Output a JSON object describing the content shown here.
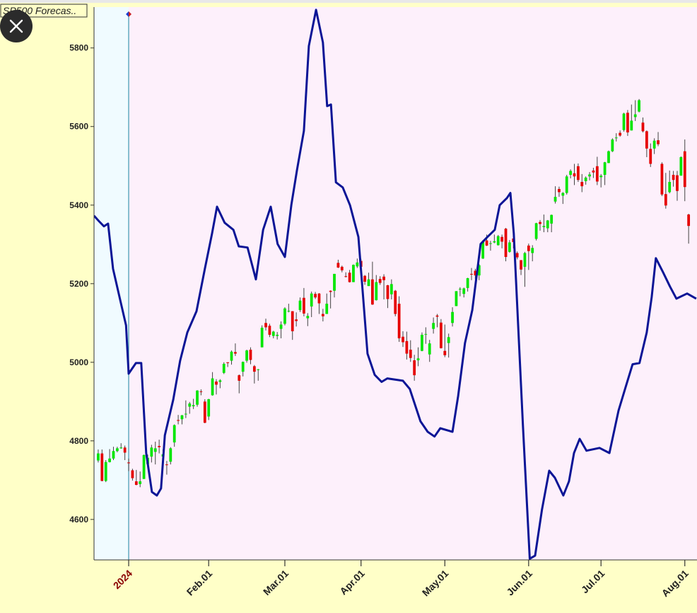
{
  "chart_data": {
    "type": "candlestick",
    "title": "SP500 Forecas..",
    "up_color": "#00e600",
    "down_color": "#e60000",
    "wick_color": "#444444",
    "xlim": [
      -9.1,
      149.2
    ],
    "ylim": [
      4497,
      5904
    ],
    "yticks": [
      4600,
      4800,
      5000,
      5200,
      5400,
      5600,
      5800
    ],
    "xticks": [
      {
        "value": 0,
        "label": "2024"
      },
      {
        "value": 21,
        "label": "Feb.01"
      },
      {
        "value": 41,
        "label": "Mar.01"
      },
      {
        "value": 61,
        "label": "Apr.01"
      },
      {
        "value": 83,
        "label": "May.01"
      },
      {
        "value": 105,
        "label": "Jun.01"
      },
      {
        "value": 124,
        "label": "Jul.01"
      },
      {
        "value": 146,
        "label": "Aug.01"
      }
    ],
    "x": [
      -8,
      -7,
      -6,
      -5,
      -4,
      -3,
      -2,
      -1,
      0,
      1,
      2,
      3,
      4,
      5,
      6,
      7,
      8,
      9,
      10,
      11,
      12,
      13,
      14,
      15,
      16,
      17,
      18,
      19,
      20,
      21,
      22,
      23,
      24,
      25,
      26,
      27,
      28,
      29,
      30,
      31,
      32,
      33,
      34,
      35,
      36,
      37,
      38,
      39,
      40,
      41,
      42,
      43,
      44,
      45,
      46,
      47,
      48,
      49,
      50,
      51,
      52,
      53,
      54,
      55,
      56,
      57,
      58,
      59,
      60,
      61,
      62,
      63,
      64,
      65,
      66,
      67,
      68,
      69,
      70,
      71,
      72,
      73,
      74,
      75,
      76,
      77,
      78,
      79,
      80,
      81,
      82,
      83,
      84,
      85,
      86,
      87,
      88,
      89,
      90,
      91,
      92,
      93,
      94,
      95,
      96,
      97,
      98,
      99,
      100,
      101,
      102,
      103,
      104,
      105,
      106,
      107,
      108,
      109,
      110,
      111,
      112,
      113,
      114,
      115,
      116,
      117,
      118,
      119,
      120,
      121,
      122,
      123,
      124,
      125,
      126,
      127,
      128,
      129,
      130,
      131,
      132,
      133,
      134,
      135,
      136,
      137,
      138,
      139,
      140,
      141,
      142,
      143,
      144,
      145,
      146,
      147
    ],
    "open": [
      4750,
      4768,
      4698,
      4746,
      4755,
      4774,
      4781,
      4783,
      4745,
      4725,
      4697,
      4690,
      4703,
      4741,
      4760,
      4772,
      4787,
      4760,
      4740,
      4747,
      4796,
      4853,
      4855,
      4868,
      4887,
      4888,
      4892,
      4926,
      4900,
      4862,
      4916,
      4951,
      4950,
      4973,
      5000,
      5004,
      5026,
      4967,
      4976,
      5004,
      5032,
      4990,
      4982,
      5038,
      5100,
      5093,
      5067,
      5067,
      5085,
      5098,
      5130,
      5130,
      5109,
      5133,
      5164,
      5112,
      5142,
      5174,
      5175,
      5123,
      5123,
      5182,
      5182,
      5253,
      5243,
      5219,
      5228,
      5204,
      5244,
      5258,
      5220,
      5194,
      5211,
      5158,
      5212,
      5218,
      5196,
      5173,
      5182,
      5149,
      5065,
      5054,
      5032,
      5005,
      5005,
      5029,
      5072,
      5020,
      5085,
      5119,
      5101,
      5029,
      5049,
      5100,
      5143,
      5187,
      5174,
      5189,
      5225,
      5233,
      5221,
      5264,
      5310,
      5303,
      5305,
      5298,
      5319,
      5340,
      5281,
      5315,
      5278,
      5260,
      5243,
      5297,
      5278,
      5314,
      5357,
      5344,
      5341,
      5353,
      5409,
      5441,
      5424,
      5431,
      5477,
      5481,
      5499,
      5459,
      5461,
      5473,
      5488,
      5499,
      5471,
      5477,
      5507,
      5537,
      5572,
      5584,
      5591,
      5635,
      5590,
      5624,
      5638,
      5610,
      5588,
      5543,
      5544,
      5565,
      5505,
      5428,
      5433,
      5477,
      5476,
      5475,
      5537,
      5376
    ],
    "high": [
      4778,
      4778,
      4751,
      4779,
      4785,
      4785,
      4794,
      4788,
      4755,
      4729,
      4726,
      4722,
      4765,
      4765,
      4790,
      4798,
      4803,
      4778,
      4749,
      4784,
      4842,
      4866,
      4866,
      4903,
      4899,
      4907,
      4929,
      4931,
      4906,
      4907,
      4975,
      4957,
      4957,
      5000,
      5000,
      5030,
      5048,
      4969,
      5002,
      5032,
      5038,
      4993,
      4983,
      5094,
      5111,
      5098,
      5080,
      5077,
      5104,
      5140,
      5149,
      5130,
      5127,
      5165,
      5189,
      5125,
      5180,
      5179,
      5176,
      5136,
      5175,
      5183,
      5225,
      5261,
      5246,
      5229,
      5235,
      5249,
      5264,
      5263,
      5222,
      5228,
      5256,
      5222,
      5219,
      5224,
      5197,
      5211,
      5184,
      5168,
      5079,
      5078,
      5056,
      5019,
      5038,
      5076,
      5089,
      5057,
      5114,
      5123,
      5110,
      5096,
      5073,
      5140,
      5181,
      5191,
      5190,
      5215,
      5240,
      5238,
      5250,
      5311,
      5325,
      5309,
      5325,
      5324,
      5325,
      5342,
      5311,
      5316,
      5282,
      5260,
      5281,
      5302,
      5298,
      5355,
      5362,
      5376,
      5362,
      5376,
      5448,
      5447,
      5433,
      5477,
      5491,
      5505,
      5506,
      5479,
      5473,
      5484,
      5495,
      5523,
      5479,
      5510,
      5539,
      5570,
      5583,
      5590,
      5635,
      5642,
      5656,
      5667,
      5670,
      5623,
      5590,
      5557,
      5570,
      5586,
      5509,
      5482,
      5488,
      5487,
      5487,
      5524,
      5567,
      5378
    ],
    "low": [
      4745,
      4697,
      4695,
      4745,
      4751,
      4771,
      4780,
      4751,
      4723,
      4699,
      4687,
      4682,
      4703,
      4731,
      4745,
      4740,
      4768,
      4740,
      4714,
      4740,
      4785,
      4842,
      4842,
      4858,
      4869,
      4881,
      4887,
      4916,
      4845,
      4853,
      4915,
      4918,
      4934,
      4970,
      4988,
      4994,
      5016,
      4921,
      4964,
      4999,
      4995,
      4946,
      4953,
      5038,
      5081,
      5064,
      5061,
      5058,
      5061,
      5094,
      5127,
      5057,
      5091,
      5128,
      5117,
      5092,
      5115,
      5161,
      5123,
      5104,
      5123,
      5137,
      5165,
      5240,
      5229,
      5216,
      5203,
      5204,
      5240,
      5229,
      5197,
      5194,
      5146,
      5157,
      5197,
      5160,
      5138,
      5160,
      5117,
      5052,
      5039,
      5007,
      5001,
      4953,
      4990,
      5028,
      5047,
      5001,
      5073,
      5089,
      5035,
      5013,
      5012,
      5091,
      5143,
      5168,
      5165,
      5180,
      5209,
      5211,
      5209,
      5263,
      5296,
      5284,
      5303,
      5297,
      5290,
      5257,
      5279,
      5290,
      5262,
      5222,
      5192,
      5235,
      5257,
      5310,
      5335,
      5331,
      5331,
      5331,
      5404,
      5421,
      5403,
      5427,
      5468,
      5451,
      5459,
      5433,
      5452,
      5463,
      5469,
      5451,
      5445,
      5451,
      5507,
      5535,
      5562,
      5574,
      5587,
      5576,
      5590,
      5614,
      5636,
      5585,
      5522,
      5497,
      5530,
      5550,
      5423,
      5391,
      5430,
      5447,
      5411,
      5475,
      5410,
      5302
    ],
    "close": [
      4768,
      4698,
      4746,
      4755,
      4774,
      4781,
      4783,
      4770,
      4743,
      4705,
      4688,
      4697,
      4764,
      4757,
      4783,
      4781,
      4784,
      4766,
      4739,
      4781,
      4840,
      4851,
      4865,
      4869,
      4895,
      4891,
      4928,
      4925,
      4846,
      4906,
      4959,
      4943,
      4954,
      4996,
      4998,
      5027,
      5022,
      4953,
      5001,
      5030,
      5006,
      4976,
      4982,
      5088,
      5089,
      5070,
      5078,
      5070,
      5096,
      5137,
      5131,
      5079,
      5105,
      5157,
      5124,
      5118,
      5175,
      5165,
      5150,
      5117,
      5149,
      5179,
      5225,
      5241,
      5234,
      5218,
      5204,
      5248,
      5254,
      5243,
      5205,
      5211,
      5147,
      5204,
      5202,
      5209,
      5161,
      5199,
      5123,
      5061,
      5051,
      5022,
      5011,
      4967,
      5010,
      5070,
      5072,
      5048,
      5100,
      5116,
      5036,
      5018,
      5064,
      5128,
      5181,
      5187,
      5188,
      5214,
      5223,
      5221,
      5247,
      5308,
      5297,
      5303,
      5308,
      5321,
      5307,
      5268,
      5305,
      5306,
      5267,
      5236,
      5278,
      5283,
      5291,
      5354,
      5352,
      5347,
      5361,
      5375,
      5421,
      5433,
      5431,
      5473,
      5487,
      5473,
      5464,
      5448,
      5470,
      5478,
      5483,
      5460,
      5475,
      5509,
      5537,
      5567,
      5572,
      5577,
      5633,
      5585,
      5615,
      5631,
      5667,
      5588,
      5544,
      5505,
      5564,
      5555,
      5427,
      5399,
      5459,
      5464,
      5436,
      5522,
      5446,
      5347
    ],
    "forecast": {
      "color": "#0b1596",
      "x": [
        -9.1,
        -7.8,
        -6.5,
        -5.4,
        -4.1,
        -2.2,
        -0.7,
        0,
        1.9,
        3.3,
        4.6,
        6.1,
        7.4,
        8.5,
        9.5,
        11.7,
        13.5,
        15.4,
        17.8,
        20,
        21.9,
        23.2,
        25.2,
        27.5,
        28.9,
        31.2,
        33.4,
        35.3,
        37.3,
        39.1,
        41,
        42.7,
        44.2,
        46,
        47.3,
        49.2,
        51,
        52.1,
        53.1,
        54.4,
        56.2,
        58.1,
        60.3,
        61.4,
        62.7,
        64.6,
        66.4,
        67.9,
        72,
        73.8,
        76.6,
        78.5,
        80.3,
        81.8,
        85,
        86.5,
        88.3,
        90.2,
        92.4,
        94.2,
        96.1,
        97.4,
        99.3,
        100.2,
        101.1,
        103.5,
        105.3,
        106.7,
        108.5,
        110.4,
        111.9,
        114.1,
        115.6,
        116.9,
        118.4,
        120.2,
        123.6,
        126.2,
        128.6,
        130.4,
        132.3,
        134.1,
        136,
        137.3,
        138.4,
        140.3,
        142.1,
        143.8,
        146.6,
        149
      ],
      "values": [
        5373,
        5359,
        5346,
        5353,
        5238,
        5157,
        5094,
        4971,
        4998,
        4998,
        4769,
        4670,
        4661,
        4679,
        4814,
        4905,
        5004,
        5076,
        5130,
        5238,
        5328,
        5396,
        5355,
        5337,
        5295,
        5292,
        5211,
        5337,
        5396,
        5301,
        5268,
        5400,
        5490,
        5589,
        5805,
        5897,
        5814,
        5652,
        5656,
        5458,
        5445,
        5400,
        5319,
        5184,
        5022,
        4968,
        4950,
        4959,
        4953,
        4932,
        4850,
        4823,
        4811,
        4832,
        4823,
        4914,
        5049,
        5133,
        5301,
        5319,
        5337,
        5400,
        5418,
        5431,
        5328,
        4841,
        4500,
        4508,
        4625,
        4724,
        4706,
        4661,
        4697,
        4769,
        4805,
        4775,
        4782,
        4769,
        4877,
        4935,
        4995,
        4998,
        5076,
        5166,
        5265,
        5229,
        5193,
        5162,
        5175,
        5162
      ]
    }
  }
}
